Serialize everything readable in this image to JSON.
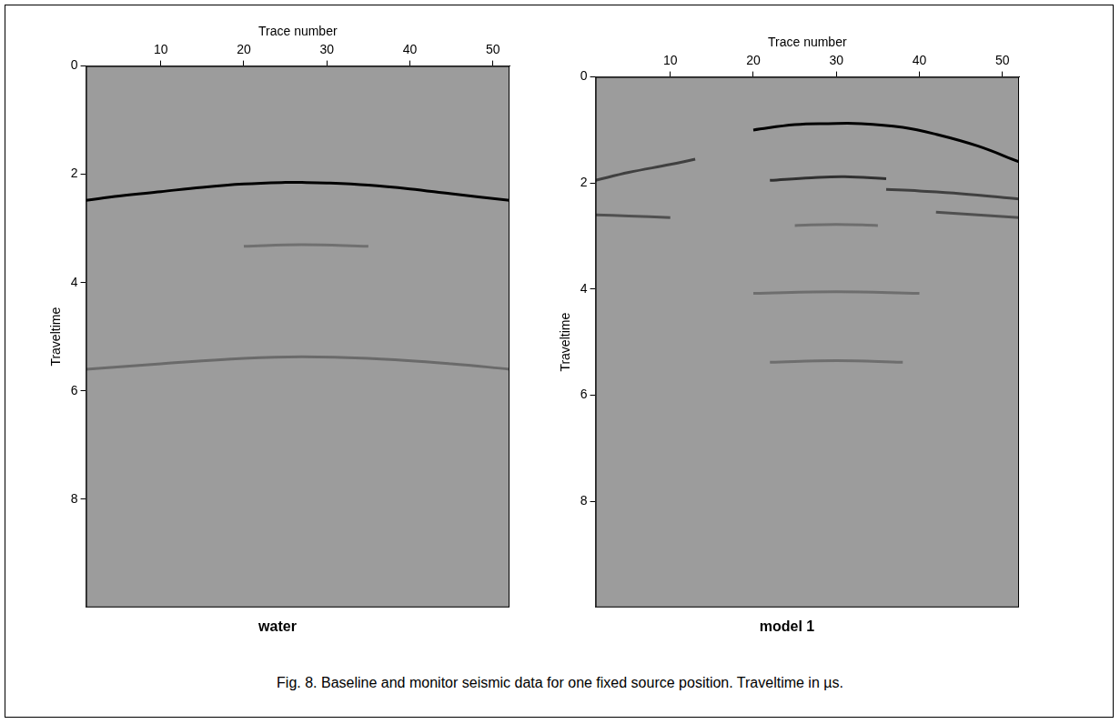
{
  "caption": "Fig. 8. Baseline and monitor seismic data for one fixed source position. Traveltime in µs.",
  "chart_data": [
    {
      "type": "line",
      "title": "water",
      "x_label": "Trace number",
      "y_label": "Traveltime",
      "xlim": [
        1,
        52
      ],
      "xticks": [
        10,
        20,
        30,
        40,
        50
      ],
      "ylim": [
        0,
        10
      ],
      "yticks": [
        0,
        2,
        4,
        6,
        8
      ],
      "grid": false,
      "series": [
        {
          "color": "#000000",
          "x": [
            1,
            5,
            10,
            15,
            20,
            25,
            27,
            30,
            35,
            40,
            45,
            52
          ],
          "values": [
            2.48,
            2.4,
            2.32,
            2.24,
            2.18,
            2.15,
            2.15,
            2.16,
            2.2,
            2.27,
            2.36,
            2.48
          ]
        },
        {
          "color": "#707070",
          "x": [
            20,
            27,
            35
          ],
          "values": [
            3.33,
            3.3,
            3.33
          ]
        },
        {
          "color": "#6a6a6a",
          "x": [
            1,
            10,
            20,
            27,
            35,
            45,
            52
          ],
          "values": [
            5.6,
            5.5,
            5.4,
            5.37,
            5.4,
            5.5,
            5.6
          ]
        }
      ]
    },
    {
      "type": "line",
      "title": "model 1",
      "x_label": "Trace number",
      "y_label": "Traveltime",
      "xlim": [
        1,
        52
      ],
      "xticks": [
        10,
        20,
        30,
        40,
        50
      ],
      "ylim": [
        0,
        10
      ],
      "yticks": [
        0,
        2,
        4,
        6,
        8
      ],
      "grid": false,
      "series": [
        {
          "color": "#000000",
          "x": [
            20,
            25,
            29,
            33,
            38,
            42,
            47,
            52
          ],
          "values": [
            1.0,
            0.9,
            0.88,
            0.88,
            0.95,
            1.08,
            1.3,
            1.6
          ]
        },
        {
          "color": "#404040",
          "x": [
            1,
            5,
            10,
            13
          ],
          "values": [
            1.95,
            1.8,
            1.65,
            1.55
          ]
        },
        {
          "color": "#303030",
          "x": [
            22,
            27,
            31,
            36
          ],
          "values": [
            1.95,
            1.9,
            1.88,
            1.92
          ]
        },
        {
          "color": "#404040",
          "x": [
            36,
            40,
            45,
            52
          ],
          "values": [
            2.12,
            2.15,
            2.2,
            2.3
          ]
        },
        {
          "color": "#505050",
          "x": [
            42,
            47,
            52
          ],
          "values": [
            2.55,
            2.6,
            2.65
          ]
        },
        {
          "color": "#505050",
          "x": [
            1,
            5,
            10
          ],
          "values": [
            2.6,
            2.62,
            2.65
          ]
        },
        {
          "color": "#6e6e6e",
          "x": [
            25,
            30,
            35
          ],
          "values": [
            2.8,
            2.78,
            2.8
          ]
        },
        {
          "color": "#6e6e6e",
          "x": [
            20,
            30,
            40
          ],
          "values": [
            4.08,
            4.05,
            4.08
          ]
        },
        {
          "color": "#6e6e6e",
          "x": [
            22,
            30,
            38
          ],
          "values": [
            5.38,
            5.35,
            5.38
          ]
        }
      ]
    }
  ]
}
